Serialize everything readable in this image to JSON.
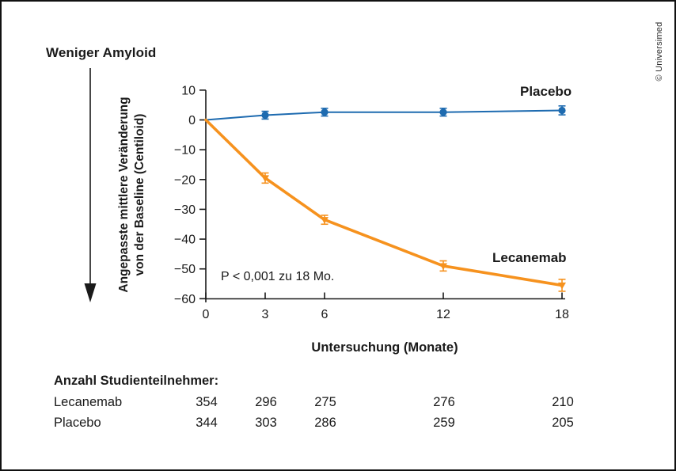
{
  "header": {
    "less_amyloid_label": "Weniger Amyloid"
  },
  "watermark": "© Universimed",
  "chart_data": {
    "type": "line",
    "x": [
      0,
      3,
      6,
      12,
      18
    ],
    "series": [
      {
        "name": "Placebo",
        "color": "#1e6bb0",
        "marker": "circle",
        "values": [
          0,
          1.6,
          2.6,
          2.6,
          3.2
        ],
        "errors": [
          0,
          1.3,
          1.3,
          1.3,
          1.5
        ]
      },
      {
        "name": "Lecanemab",
        "color": "#f6921e",
        "marker": "triangle",
        "values": [
          0,
          -19.5,
          -33.5,
          -49,
          -55.5
        ],
        "errors": [
          0,
          1.7,
          1.5,
          1.7,
          2.0
        ]
      }
    ],
    "title": "",
    "xlabel": "Untersuchung (Monate)",
    "ylabel": "Angepasste mittlere Veränderung von der Baseline (Centiloid)",
    "ylabel_line1": "Angepasste mittlere Veränderung",
    "ylabel_line2": "von der Baseline (Centiloid)",
    "yticks": [
      10,
      0,
      -10,
      -20,
      -30,
      -40,
      -50,
      -60
    ],
    "xticks": [
      0,
      3,
      6,
      12,
      18
    ],
    "ylim": [
      -60,
      10
    ],
    "xlim": [
      0,
      18
    ],
    "grid": false,
    "legend_position": "inline-labels",
    "annotation": "P < 0,001 zu 18 Mo."
  },
  "table": {
    "title": "Anzahl Studienteilnehmer:",
    "columns_months": [
      "0",
      "3",
      "6",
      "12",
      "18"
    ],
    "rows": [
      {
        "label": "Lecanemab",
        "values": [
          "354",
          "296",
          "275",
          "276",
          "210"
        ]
      },
      {
        "label": "Placebo",
        "values": [
          "344",
          "303",
          "286",
          "259",
          "205"
        ]
      }
    ]
  }
}
